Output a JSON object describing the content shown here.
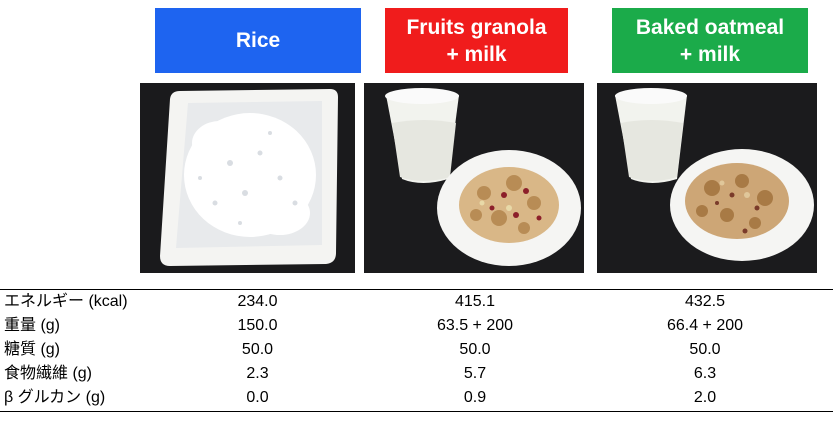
{
  "labels": {
    "rice": "Rice",
    "granola_line1": "Fruits granola",
    "granola_line2": "+ milk",
    "oatmeal_line1": "Baked oatmeal",
    "oatmeal_line2": "+ milk"
  },
  "colors": {
    "rice_label_bg": "#1e64f0",
    "granola_label_bg": "#f01c1c",
    "oatmeal_label_bg": "#1bab4a"
  },
  "table": {
    "rows": [
      {
        "name": "エネルギー (kcal)",
        "rice": "234.0",
        "granola": "415.1",
        "oatmeal": "432.5"
      },
      {
        "name": "重量 (g)",
        "rice": "150.0",
        "granola": "63.5 + 200",
        "oatmeal": "66.4 + 200"
      },
      {
        "name": "糖質 (g)",
        "rice": "50.0",
        "granola": "50.0",
        "oatmeal": "50.0"
      },
      {
        "name": "食物繊維 (g)",
        "rice": "2.3",
        "granola": "5.7",
        "oatmeal": "6.3"
      },
      {
        "name": "β グルカン (g)",
        "rice": "0.0",
        "granola": "0.9",
        "oatmeal": "2.0"
      }
    ]
  }
}
